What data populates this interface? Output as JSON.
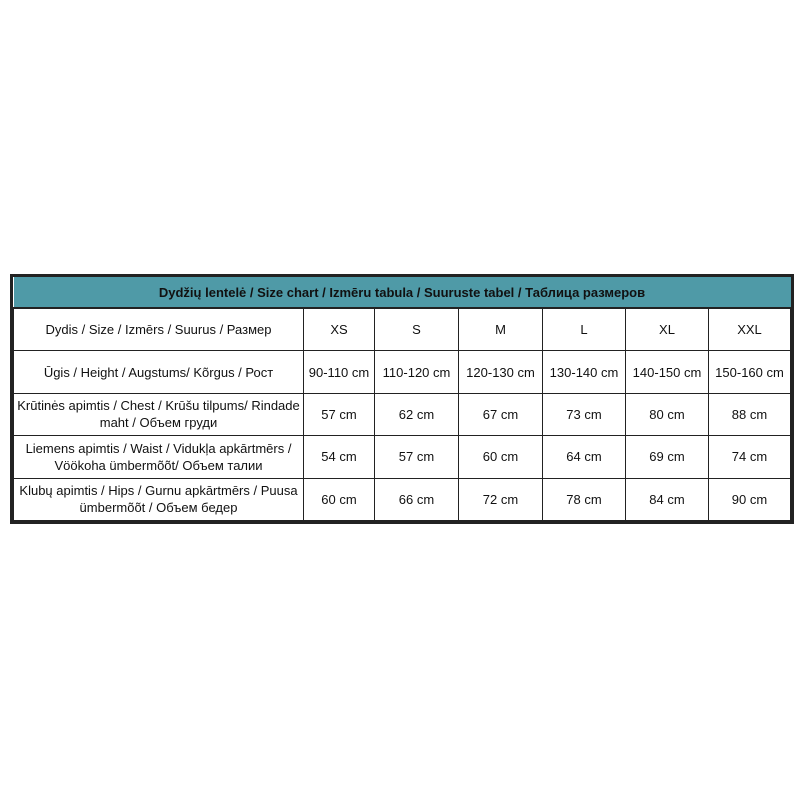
{
  "title": "Dydžių lentelė / Size chart / Izmēru tabula / Suuruste tabel / Таблица размеров",
  "rows": [
    {
      "label": "Dydis / Size / Izmērs / Suurus / Размер",
      "values": [
        "XS",
        "S",
        "M",
        "L",
        "XL",
        "XXL"
      ]
    },
    {
      "label": "Ūgis / Height / Augstums/ Kõrgus / Рост",
      "values": [
        "90-110 cm",
        "110-120 cm",
        "120-130 cm",
        "130-140 cm",
        "140-150 cm",
        "150-160 cm"
      ]
    },
    {
      "label": "Krūtinės apimtis / Chest / Krūšu tilpums/ Rindade maht / Объем груди",
      "values": [
        "57 cm",
        "62 cm",
        "67 cm",
        "73 cm",
        "80 cm",
        "88 cm"
      ]
    },
    {
      "label": "Liemens apimtis / Waist / Vidukļa apkārtmērs / Vöökoha ümbermõõt/ Объем талии",
      "values": [
        "54 cm",
        "57 cm",
        "60 cm",
        "64 cm",
        "69 cm",
        "74 cm"
      ]
    },
    {
      "label": "Klubų apimtis / Hips / Gurnu apkārtmērs / Puusa ümbermõõt / Объем бедер",
      "values": [
        "60 cm",
        "66 cm",
        "72 cm",
        "78 cm",
        "84 cm",
        "90 cm"
      ]
    }
  ],
  "colors": {
    "header": "#4f9aa7",
    "border": "#222222"
  }
}
